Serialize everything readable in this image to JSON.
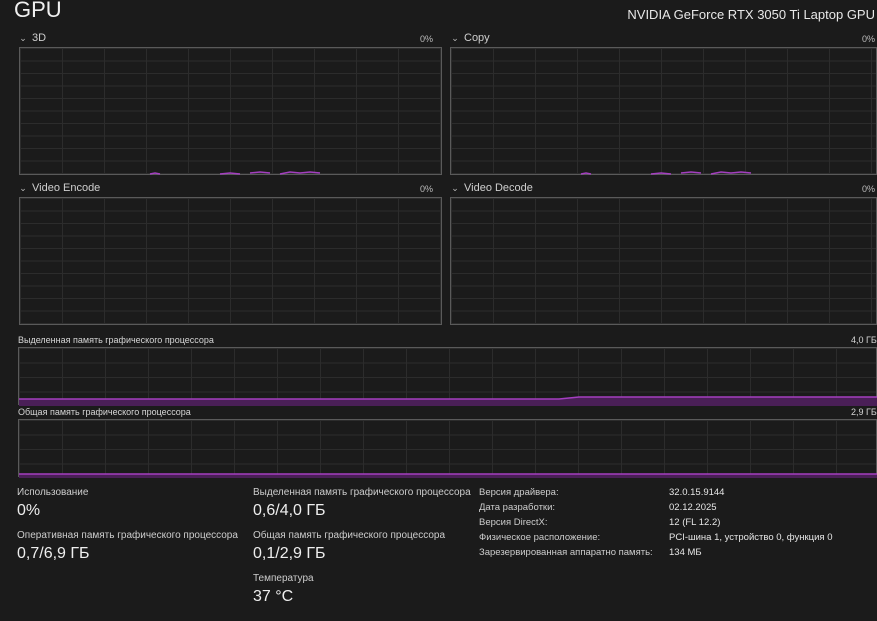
{
  "header": {
    "title": "GPU",
    "device": "NVIDIA GeForce RTX 3050 Ti Laptop GPU"
  },
  "engines": [
    {
      "name": "3D",
      "percent": "0%"
    },
    {
      "name": "Copy",
      "percent": "0%"
    },
    {
      "name": "Video Encode",
      "percent": "0%"
    },
    {
      "name": "Video Decode",
      "percent": "0%"
    }
  ],
  "memory_graphs": {
    "dedicated": {
      "label": "Выделенная память графического процессора",
      "max": "4,0 ГБ"
    },
    "shared": {
      "label": "Общая память графического процессора",
      "max": "2,9 ГБ"
    }
  },
  "stats": {
    "utilization": {
      "label": "Использование",
      "value": "0%"
    },
    "gpu_ram": {
      "label": "Оперативная память графического процессора",
      "value": "0,7/6,9 ГБ"
    },
    "dedicated": {
      "label": "Выделенная память графического процессора",
      "value": "0,6/4,0 ГБ"
    },
    "shared": {
      "label": "Общая память графического процессора",
      "value": "0,1/2,9 ГБ"
    },
    "temperature": {
      "label": "Температура",
      "value": "37 °C"
    }
  },
  "info": [
    {
      "key": "Версия драйвера:",
      "value": "32.0.15.9144"
    },
    {
      "key": "Дата разработки:",
      "value": "02.12.2025"
    },
    {
      "key": "Версия DirectX:",
      "value": "12 (FL 12.2)"
    },
    {
      "key": "Физическое расположение:",
      "value": "PCI-шина 1, устройство 0, функция 0"
    },
    {
      "key": "Зарезервированная аппаратно память:",
      "value": "134 МБ"
    }
  ],
  "colors": {
    "accent": "#a43fc0",
    "grid": "#2c2c2c",
    "border": "#5a5a5a"
  }
}
